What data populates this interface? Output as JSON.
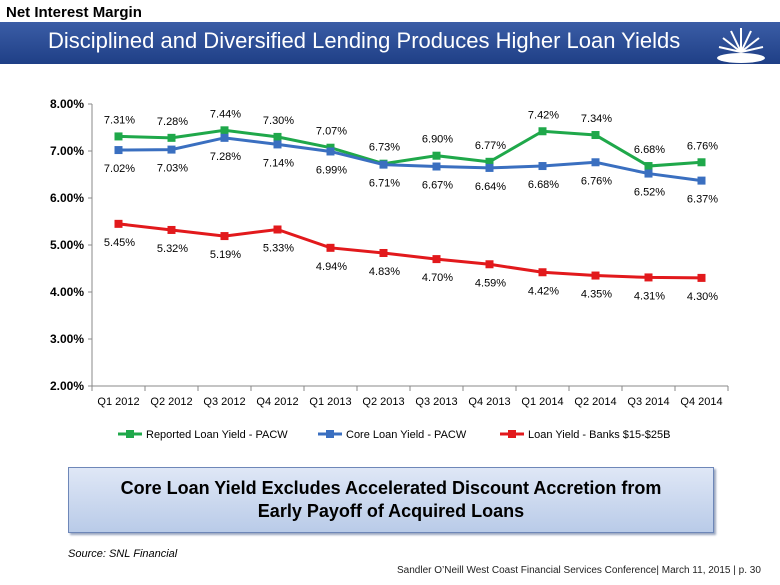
{
  "header": {
    "section_label": "Net Interest Margin",
    "title": "Disciplined and Diversified Lending Produces Higher Loan Yields"
  },
  "chart_data": {
    "type": "line",
    "categories": [
      "Q1 2012",
      "Q2 2012",
      "Q3 2012",
      "Q4 2012",
      "Q1 2013",
      "Q2 2013",
      "Q3 2013",
      "Q4 2013",
      "Q1 2014",
      "Q2 2014",
      "Q3 2014",
      "Q4 2014"
    ],
    "series": [
      {
        "name": "Reported Loan Yield - PACW",
        "color": "#1fa84a",
        "values": [
          7.31,
          7.28,
          7.44,
          7.3,
          7.07,
          6.73,
          6.9,
          6.77,
          7.42,
          7.34,
          6.68,
          6.76
        ],
        "label_pos": "above"
      },
      {
        "name": "Core Loan Yield - PACW",
        "color": "#3a6fc0",
        "values": [
          7.02,
          7.03,
          7.28,
          7.14,
          6.99,
          6.71,
          6.67,
          6.64,
          6.68,
          6.76,
          6.52,
          6.37
        ],
        "label_pos": "below"
      },
      {
        "name": "Loan Yield - Banks $15-$25B",
        "color": "#e2191c",
        "values": [
          5.45,
          5.32,
          5.19,
          5.33,
          4.94,
          4.83,
          4.7,
          4.59,
          4.42,
          4.35,
          4.31,
          4.3
        ],
        "label_pos": "below"
      }
    ],
    "ylim": [
      2.0,
      8.0
    ],
    "yticks": [
      "2.00%",
      "3.00%",
      "4.00%",
      "5.00%",
      "6.00%",
      "7.00%",
      "8.00%"
    ],
    "grid": false,
    "legend": "bottom",
    "value_format": "percent_2dp"
  },
  "callout": {
    "text": "Core Loan Yield Excludes Accelerated Discount Accretion from Early Payoff of Acquired Loans"
  },
  "source": "Source: SNL Financial",
  "footer": "Sandler O’Neill West Coast Financial Services Conference| March 11, 2015 | p. 30"
}
